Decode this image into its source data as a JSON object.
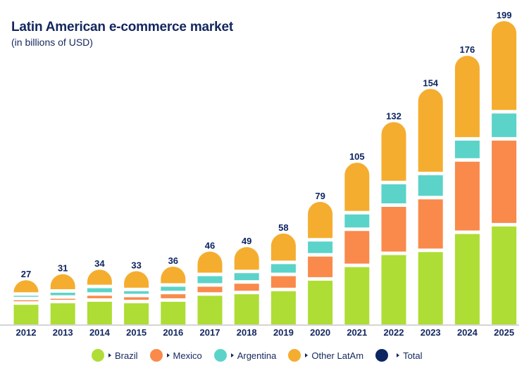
{
  "chart_data": {
    "type": "bar",
    "stacked": true,
    "title": "Latin American e-commerce market",
    "subtitle": "(in billions of USD)",
    "xlabel": "",
    "ylabel": "",
    "categories": [
      "2012",
      "2013",
      "2014",
      "2015",
      "2016",
      "2017",
      "2018",
      "2019",
      "2020",
      "2021",
      "2022",
      "2023",
      "2024",
      "2025"
    ],
    "series": [
      {
        "name": "Brazil",
        "color": "#AEDD35",
        "values": [
          13,
          14,
          15,
          14,
          15,
          19,
          20,
          22,
          29,
          38,
          46,
          48,
          60,
          65
        ]
      },
      {
        "name": "Mexico",
        "color": "#F98A4B",
        "values": [
          3,
          3,
          4,
          4,
          5,
          6,
          7,
          10,
          16,
          24,
          32,
          35,
          48,
          57
        ]
      },
      {
        "name": "Argentina",
        "color": "#5BD3C9",
        "values": [
          3,
          4,
          5,
          4,
          5,
          7,
          7,
          8,
          10,
          11,
          15,
          16,
          14,
          18
        ]
      },
      {
        "name": "Other LatAm",
        "color": "#F5AD2F",
        "values": [
          8,
          10,
          10,
          11,
          11,
          14,
          15,
          18,
          24,
          32,
          39,
          55,
          54,
          59
        ]
      }
    ],
    "totals": {
      "name": "Total",
      "color": "#0D2561",
      "values": [
        27,
        31,
        34,
        33,
        36,
        46,
        49,
        58,
        79,
        105,
        132,
        154,
        176,
        199
      ]
    },
    "ylim": [
      0,
      199
    ],
    "grid": false,
    "legend_position": "bottom"
  }
}
